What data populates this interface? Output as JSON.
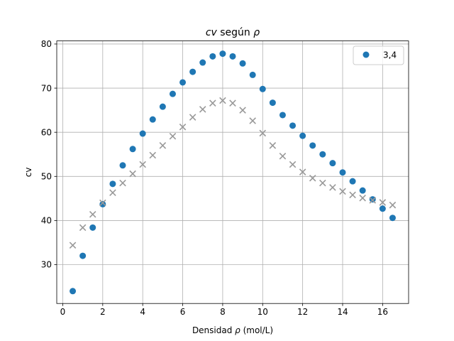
{
  "chart_data": {
    "type": "scatter",
    "title": "cv según ρ",
    "title_parts": {
      "variable": "cv",
      "middle": " según ",
      "symbol": "ρ"
    },
    "xlabel": "Densidad ρ (mol/L)",
    "xlabel_parts": {
      "prefix": "Densidad ",
      "symbol": "ρ",
      "suffix": " (mol/L)"
    },
    "ylabel": "cv",
    "xlim": [
      -0.3,
      17.3
    ],
    "ylim": [
      21.2,
      80.7
    ],
    "xticks": [
      0,
      2,
      4,
      6,
      8,
      10,
      12,
      14,
      16
    ],
    "xtick_labels": [
      "0",
      "2",
      "4",
      "6",
      "8",
      "10",
      "12",
      "14",
      "16"
    ],
    "yticks": [
      30,
      40,
      50,
      60,
      70,
      80
    ],
    "ytick_labels": [
      "30",
      "40",
      "50",
      "60",
      "70",
      "80"
    ],
    "grid": true,
    "legend_position": "upper right",
    "colors": {
      "series_1": "#1f77b4",
      "series_2": "#999999",
      "grid": "#b0b0b0"
    },
    "series": [
      {
        "name": "3,4",
        "marker": "circle",
        "in_legend": true,
        "x": [
          0.5,
          1.0,
          1.5,
          2.0,
          2.5,
          3.0,
          3.5,
          4.0,
          4.5,
          5.0,
          5.5,
          6.0,
          6.5,
          7.0,
          7.5,
          8.0,
          8.5,
          9.0,
          9.5,
          10.0,
          10.5,
          11.0,
          11.5,
          12.0,
          12.5,
          13.0,
          13.5,
          14.0,
          14.5,
          15.0,
          15.5,
          16.0,
          16.5
        ],
        "y": [
          24.0,
          32.0,
          38.4,
          43.7,
          48.3,
          52.5,
          56.2,
          59.7,
          62.9,
          65.8,
          68.7,
          71.3,
          73.7,
          75.8,
          77.2,
          77.8,
          77.2,
          75.6,
          73.0,
          69.8,
          66.7,
          63.9,
          61.5,
          59.2,
          57.0,
          55.0,
          53.0,
          50.9,
          48.9,
          46.8,
          44.8,
          42.7,
          40.6
        ]
      },
      {
        "name": "",
        "marker": "x",
        "in_legend": false,
        "x": [
          0.5,
          1.0,
          1.5,
          2.0,
          2.5,
          3.0,
          3.5,
          4.0,
          4.5,
          5.0,
          5.5,
          6.0,
          6.5,
          7.0,
          7.5,
          8.0,
          8.5,
          9.0,
          9.5,
          10.0,
          10.5,
          11.0,
          11.5,
          12.0,
          12.5,
          13.0,
          13.5,
          14.0,
          14.5,
          15.0,
          15.5,
          16.0,
          16.5
        ],
        "y": [
          34.4,
          38.4,
          41.4,
          44.0,
          46.3,
          48.5,
          50.6,
          52.7,
          54.8,
          57.0,
          59.1,
          61.2,
          63.4,
          65.2,
          66.6,
          67.2,
          66.6,
          65.0,
          62.6,
          59.8,
          57.0,
          54.6,
          52.7,
          51.0,
          49.6,
          48.5,
          47.5,
          46.6,
          45.8,
          45.1,
          44.6,
          44.1,
          43.5
        ]
      }
    ]
  }
}
